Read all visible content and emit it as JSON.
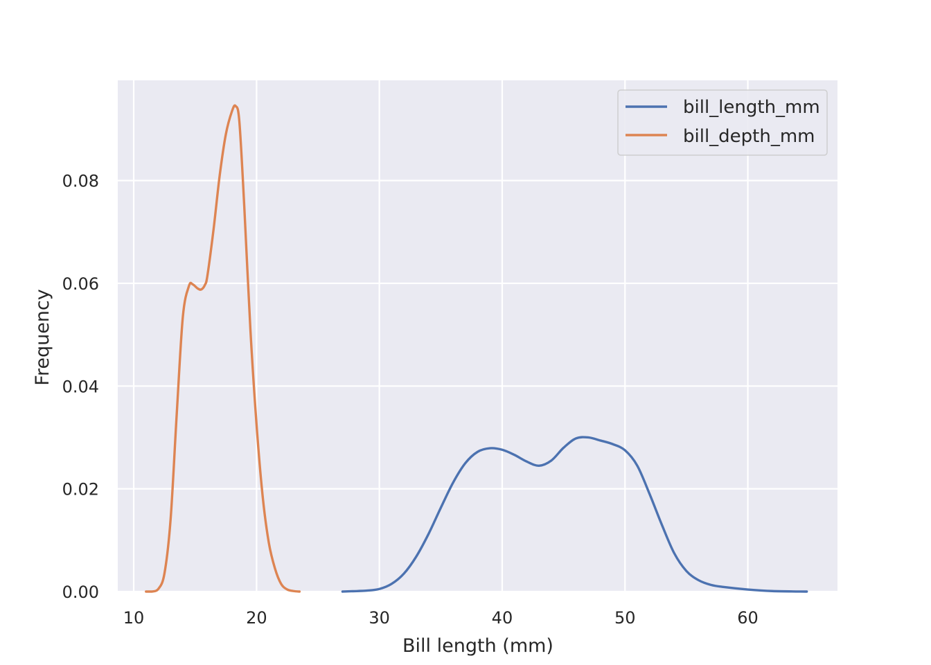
{
  "chart_data": {
    "type": "line",
    "title": "",
    "xlabel": "Bill length (mm)",
    "ylabel": "Frequency",
    "xlim": [
      8.7,
      67.3
    ],
    "ylim": [
      0.0,
      0.0995
    ],
    "x_ticks": [
      10,
      20,
      30,
      40,
      50,
      60
    ],
    "x_tick_labels": [
      "10",
      "20",
      "30",
      "40",
      "50",
      "60"
    ],
    "y_ticks": [
      0.0,
      0.02,
      0.04,
      0.06,
      0.08
    ],
    "y_tick_labels": [
      "0.00",
      "0.02",
      "0.04",
      "0.06",
      "0.08"
    ],
    "grid": true,
    "background": "#eaeaf2",
    "legend_position": "top-right",
    "series": [
      {
        "name": "bill_length_mm",
        "color": "#4c72b0",
        "x": [
          27.0,
          29.0,
          30.0,
          31.0,
          32.0,
          33.0,
          34.0,
          35.0,
          36.0,
          37.0,
          38.0,
          39.0,
          40.0,
          41.0,
          42.0,
          43.0,
          44.0,
          45.0,
          46.0,
          47.0,
          48.0,
          49.0,
          50.0,
          51.0,
          52.0,
          53.0,
          54.0,
          55.0,
          56.0,
          57.0,
          58.0,
          60.0,
          62.0,
          64.8
        ],
        "y": [
          0.0,
          0.0002,
          0.0005,
          0.0015,
          0.0035,
          0.0068,
          0.0112,
          0.0163,
          0.0212,
          0.025,
          0.0272,
          0.0279,
          0.0276,
          0.0266,
          0.0253,
          0.0245,
          0.0255,
          0.028,
          0.0298,
          0.03,
          0.0294,
          0.0287,
          0.0275,
          0.0245,
          0.019,
          0.013,
          0.0075,
          0.004,
          0.0022,
          0.0013,
          0.0009,
          0.0004,
          0.0001,
          0.0
        ]
      },
      {
        "name": "bill_depth_mm",
        "color": "#dd8452",
        "x": [
          11.0,
          11.5,
          12.0,
          12.5,
          13.0,
          13.5,
          14.0,
          14.5,
          14.8,
          15.2,
          15.5,
          15.8,
          16.0,
          16.5,
          17.0,
          17.5,
          18.0,
          18.3,
          18.6,
          19.0,
          19.5,
          20.0,
          20.5,
          21.0,
          21.5,
          22.0,
          22.5,
          23.0,
          23.5
        ],
        "y": [
          0.0,
          0.0,
          0.0005,
          0.0035,
          0.014,
          0.0345,
          0.0535,
          0.0595,
          0.0598,
          0.059,
          0.0588,
          0.0597,
          0.0615,
          0.0705,
          0.081,
          0.089,
          0.0935,
          0.0945,
          0.0915,
          0.075,
          0.051,
          0.0325,
          0.0185,
          0.0095,
          0.0045,
          0.0015,
          0.0004,
          0.0001,
          0.0
        ]
      }
    ]
  }
}
